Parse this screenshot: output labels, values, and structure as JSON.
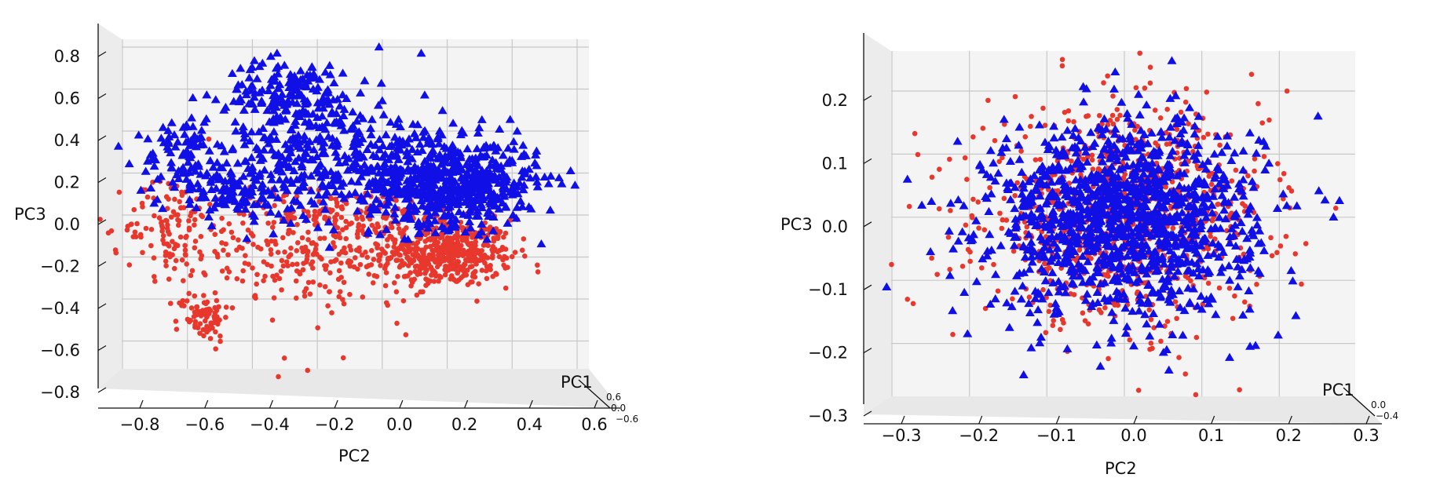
{
  "chart_data": [
    {
      "type": "scatter",
      "projection": "3d",
      "xlabel": "PC1",
      "ylabel": "PC2",
      "zlabel": "PC3",
      "ylim": [
        -0.95,
        0.62
      ],
      "zlim": [
        -0.88,
        0.9
      ],
      "pc2_ticks": [
        "−0.8",
        "−0.6",
        "−0.4",
        "−0.2",
        "0.0",
        "0.2",
        "0.4",
        "0.6"
      ],
      "pc3_ticks": [
        "−0.8",
        "−0.6",
        "−0.4",
        "−0.2",
        "0.0",
        "0.2",
        "0.4",
        "0.6",
        "0.8"
      ],
      "pc1_ticks": [
        "0.6",
        "0.0",
        "−0.6"
      ],
      "grid": true,
      "series": [
        {
          "marker": "triangle",
          "color": "#1010e6",
          "points_count": 1300,
          "clusters": [
            {
              "pc2": 0.22,
              "pc3": 0.15,
              "sd_pc2": 0.13,
              "sd_pc3": 0.1,
              "weight": 0.45
            },
            {
              "pc2": -0.18,
              "pc3": 0.28,
              "sd_pc2": 0.2,
              "sd_pc3": 0.15,
              "weight": 0.3
            },
            {
              "pc2": -0.28,
              "pc3": 0.58,
              "sd_pc2": 0.1,
              "sd_pc3": 0.08,
              "weight": 0.12
            },
            {
              "pc2": -0.62,
              "pc3": 0.28,
              "sd_pc2": 0.06,
              "sd_pc3": 0.1,
              "weight": 0.06
            },
            {
              "pc2": -0.45,
              "pc3": 0.1,
              "sd_pc2": 0.12,
              "sd_pc3": 0.06,
              "weight": 0.07
            }
          ],
          "sample_points": [
            {
              "pc2": -0.01,
              "pc3": 0.8
            },
            {
              "pc2": 0.12,
              "pc3": 0.77
            },
            {
              "pc2": 0.58,
              "pc3": 0.21
            },
            {
              "pc2": -0.75,
              "pc3": 0.38
            },
            {
              "pc2": 0.5,
              "pc3": 0.18
            }
          ]
        },
        {
          "marker": "circle",
          "color": "#e8372c",
          "points_count": 1100,
          "clusters": [
            {
              "pc2": 0.2,
              "pc3": -0.18,
              "sd_pc2": 0.1,
              "sd_pc3": 0.08,
              "weight": 0.45
            },
            {
              "pc2": -0.2,
              "pc3": -0.18,
              "sd_pc2": 0.2,
              "sd_pc3": 0.13,
              "weight": 0.28
            },
            {
              "pc2": -0.55,
              "pc3": -0.48,
              "sd_pc2": 0.04,
              "sd_pc3": 0.06,
              "weight": 0.07
            },
            {
              "pc2": -0.65,
              "pc3": -0.05,
              "sd_pc2": 0.07,
              "sd_pc3": 0.12,
              "weight": 0.1
            },
            {
              "pc2": -0.1,
              "pc3": 0.02,
              "sd_pc2": 0.2,
              "sd_pc3": 0.05,
              "weight": 0.1
            }
          ],
          "sample_points": [
            {
              "pc2": -0.82,
              "pc3": -0.18
            },
            {
              "pc2": -0.32,
              "pc3": -0.77
            },
            {
              "pc2": -0.23,
              "pc3": -0.74
            },
            {
              "pc2": -0.12,
              "pc3": -0.68
            }
          ]
        }
      ]
    },
    {
      "type": "scatter",
      "projection": "3d",
      "xlabel": "PC1",
      "ylabel": "PC2",
      "zlabel": "PC3",
      "ylim": [
        -0.34,
        0.3
      ],
      "zlim": [
        -0.3,
        0.27
      ],
      "pc2_ticks": [
        "−0.3",
        "−0.2",
        "−0.1",
        "0.0",
        "0.1",
        "0.2",
        "0.3"
      ],
      "pc3_ticks": [
        "−0.3",
        "−0.2",
        "−0.1",
        "0.0",
        "0.1",
        "0.2"
      ],
      "pc1_ticks": [
        "0.0",
        "−0.4"
      ],
      "grid": true,
      "series": [
        {
          "marker": "triangle",
          "color": "#1010e6",
          "points_count": 1300,
          "clusters": [
            {
              "pc2": 0.0,
              "pc3": 0.0,
              "sd_pc2": 0.085,
              "sd_pc3": 0.075,
              "weight": 1.0
            }
          ],
          "sample_points": [
            {
              "pc2": 0.25,
              "pc3": 0.16
            },
            {
              "pc2": -0.28,
              "pc3": 0.06
            },
            {
              "pc2": -0.13,
              "pc3": -0.25
            },
            {
              "pc2": 0.27,
              "pc3": -0.0
            }
          ]
        },
        {
          "marker": "circle",
          "color": "#e8372c",
          "points_count": 950,
          "clusters": [
            {
              "pc2": 0.0,
              "pc3": 0.0,
              "sd_pc2": 0.09,
              "sd_pc3": 0.08,
              "weight": 1.0
            }
          ],
          "sample_points": [
            {
              "pc2": -0.08,
              "pc3": 0.25
            },
            {
              "pc2": 0.02,
              "pc3": 0.26
            },
            {
              "pc2": -0.28,
              "pc3": -0.13
            },
            {
              "pc2": 0.21,
              "pc3": 0.2
            }
          ]
        }
      ]
    }
  ]
}
